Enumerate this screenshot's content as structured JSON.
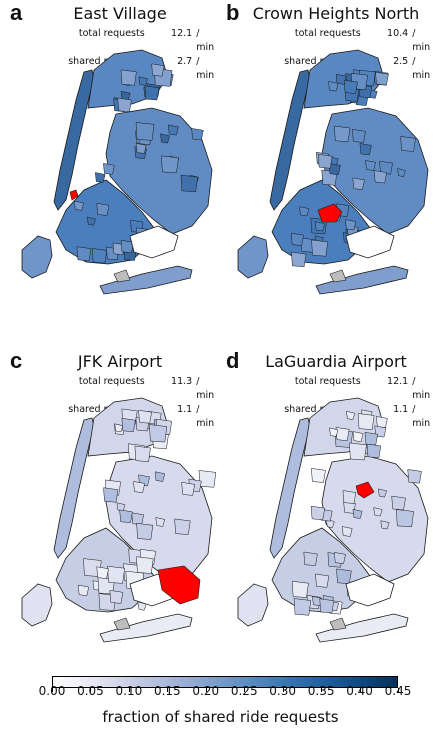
{
  "panels": [
    {
      "letter": "a",
      "title": "East Village",
      "stats": [
        {
          "label": "total requests",
          "value": "12.1",
          "unit": "/ min"
        },
        {
          "label": "shared requests",
          "value": "2.7",
          "unit": "/ min"
        }
      ],
      "shade_level": 0.28,
      "highlight_zone": "east-village"
    },
    {
      "letter": "b",
      "title": "Crown Heights North",
      "stats": [
        {
          "label": "total requests",
          "value": "10.4",
          "unit": "/ min"
        },
        {
          "label": "shared requests",
          "value": "2.5",
          "unit": "/ min"
        }
      ],
      "shade_level": 0.28,
      "highlight_zone": "crown-heights-north"
    },
    {
      "letter": "c",
      "title": "JFK Airport",
      "stats": [
        {
          "label": "total requests",
          "value": "11.3",
          "unit": "/ min"
        },
        {
          "label": "shared requests",
          "value": "1.1",
          "unit": "/ min"
        }
      ],
      "shade_level": 0.1,
      "highlight_zone": "jfk-airport"
    },
    {
      "letter": "d",
      "title": "LaGuardia Airport",
      "stats": [
        {
          "label": "total requests",
          "value": "12.1",
          "unit": "/ min"
        },
        {
          "label": "shared requests",
          "value": "1.1",
          "unit": "/ min"
        }
      ],
      "shade_level": 0.1,
      "highlight_zone": "laguardia-airport"
    }
  ],
  "colorbar": {
    "label": "fraction of shared ride requests",
    "min": 0.0,
    "max": 0.45,
    "ticks": [
      "0.00",
      "0.05",
      "0.10",
      "0.15",
      "0.20",
      "0.25",
      "0.30",
      "0.35",
      "0.40",
      "0.45"
    ]
  },
  "colors": {
    "highlight": "#ff0000",
    "no_data": "#bdbdbd",
    "border": "#1a1a1a"
  }
}
